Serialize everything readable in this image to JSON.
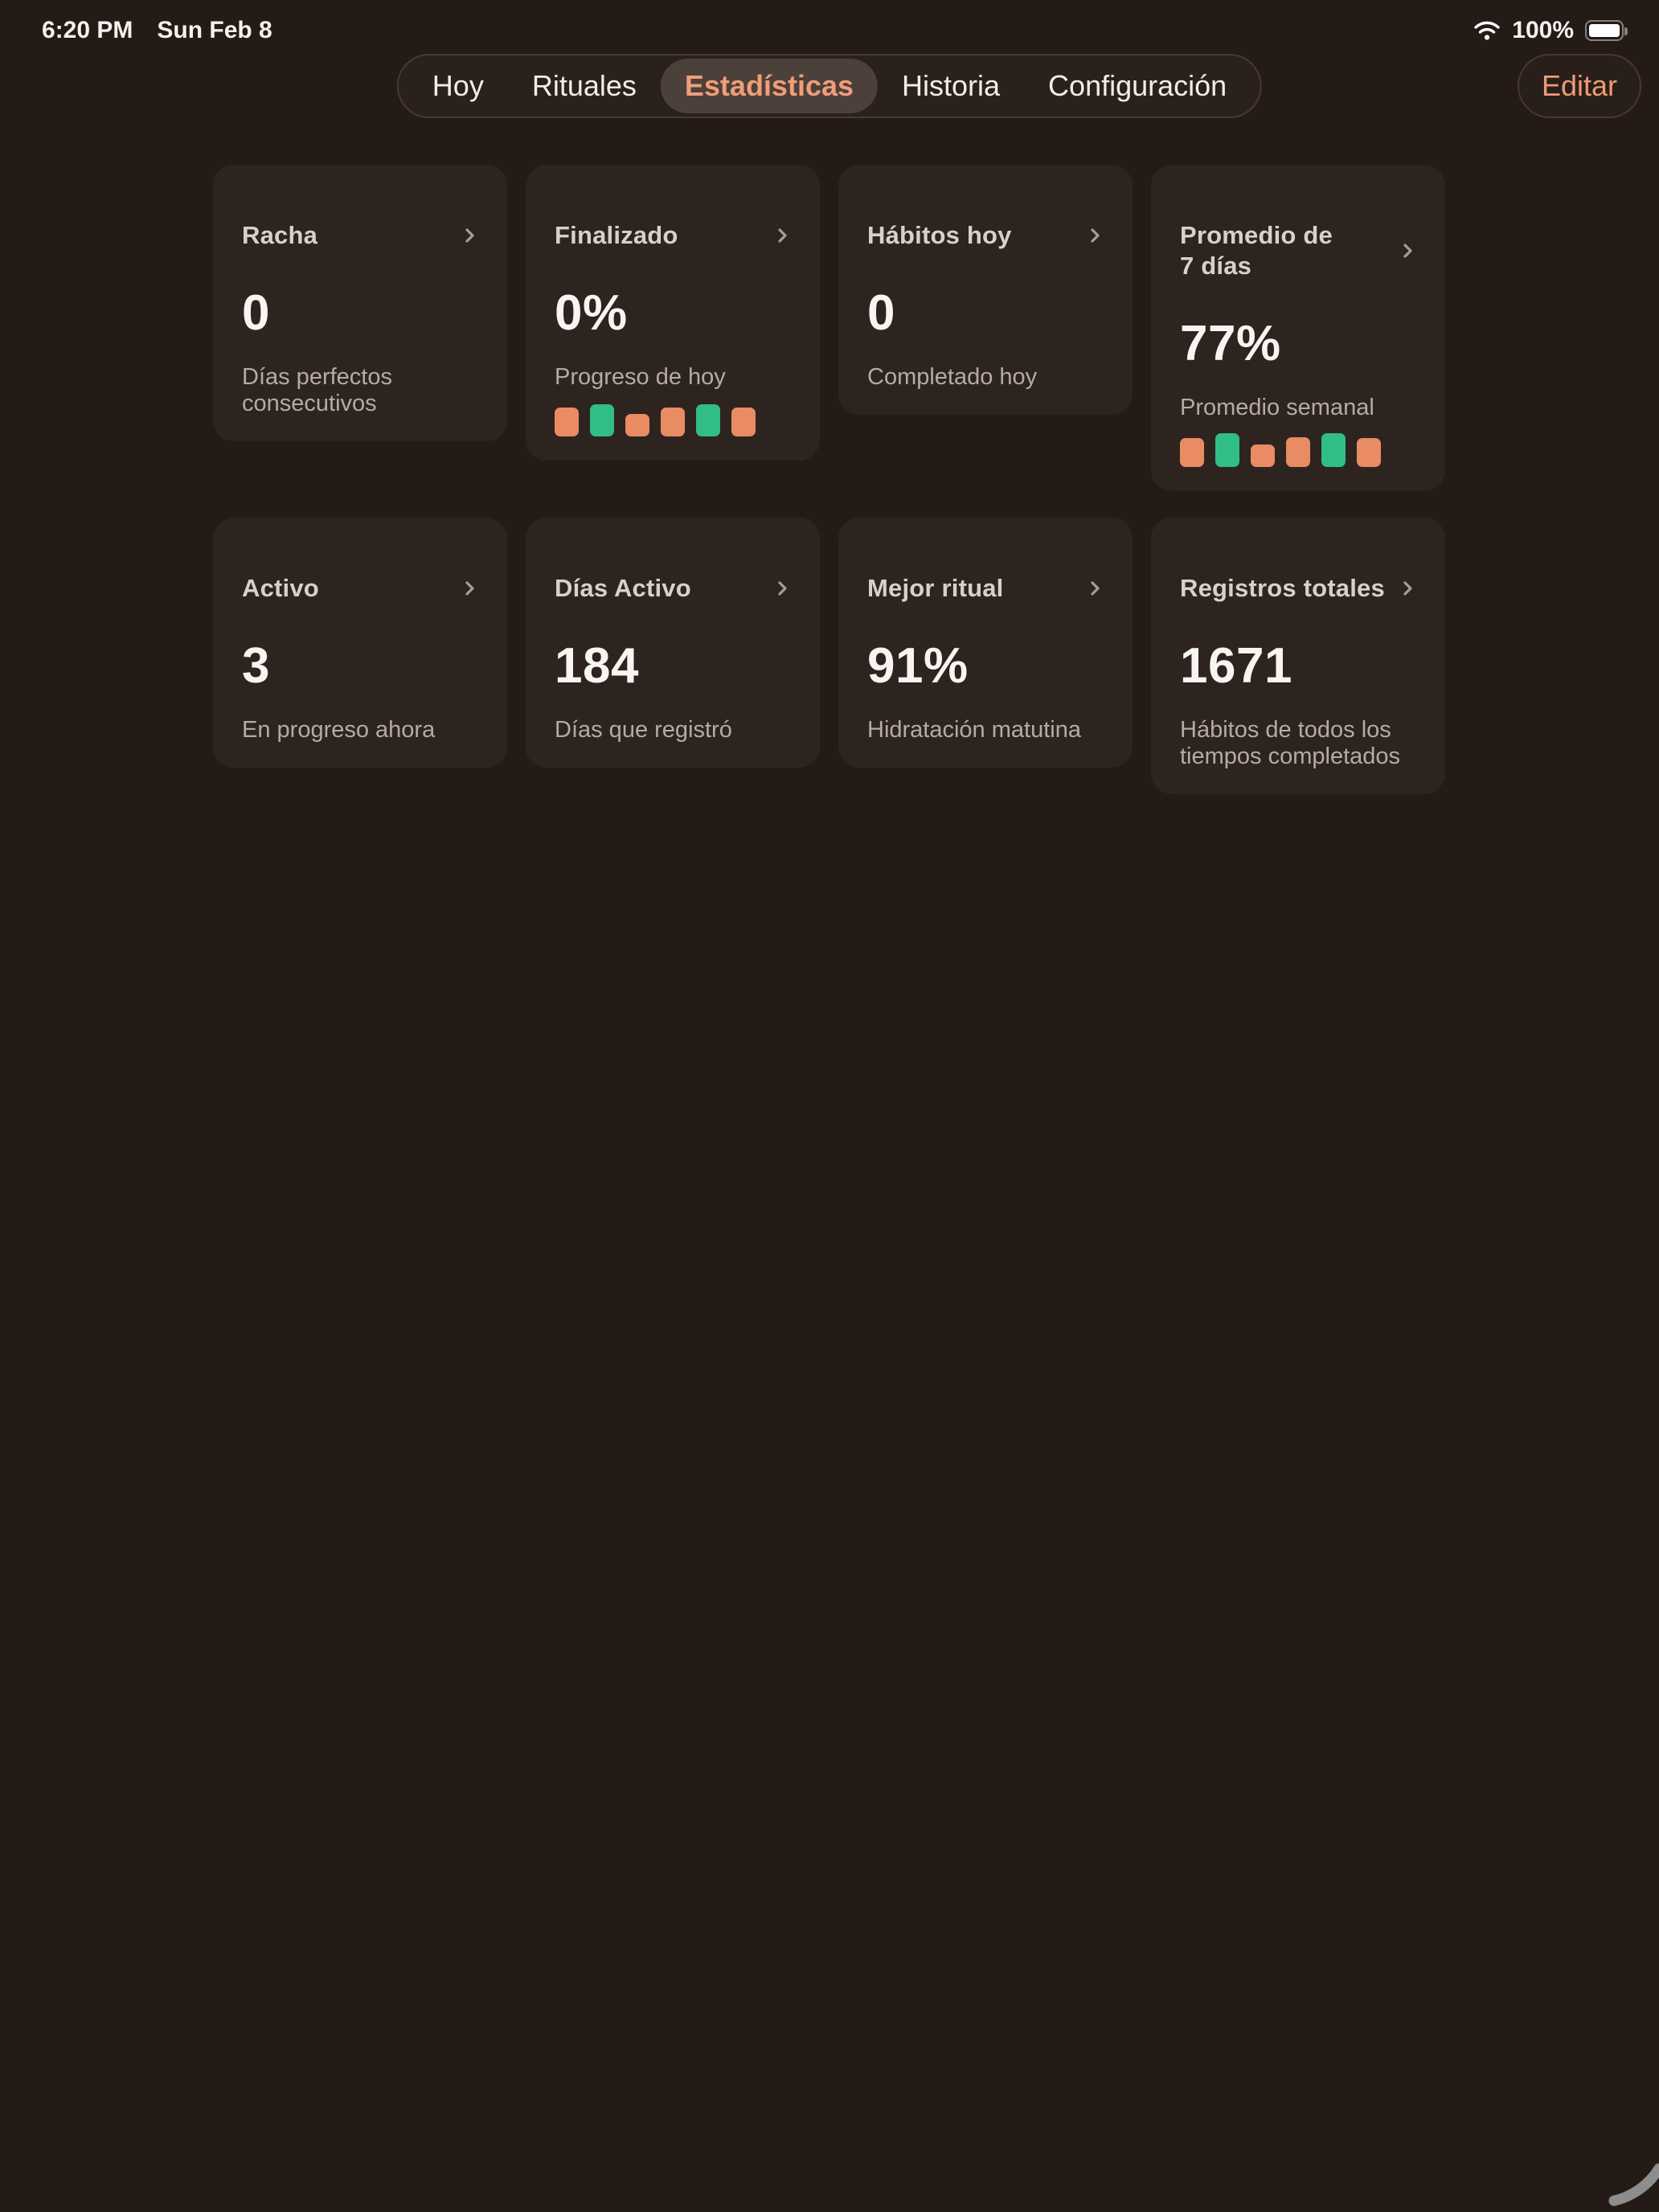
{
  "status_bar": {
    "time": "6:20 PM",
    "date": "Sun Feb 8",
    "battery_percent": "100%"
  },
  "nav": {
    "tabs": [
      {
        "label": "Hoy",
        "selected": false
      },
      {
        "label": "Rituales",
        "selected": false
      },
      {
        "label": "Estadísticas",
        "selected": true
      },
      {
        "label": "Historia",
        "selected": false
      },
      {
        "label": "Configuración",
        "selected": false
      }
    ],
    "edit_label": "Editar"
  },
  "cards": [
    {
      "title": "Racha",
      "value": "0",
      "subtitle": "Días perfectos consecutivos",
      "bars": null
    },
    {
      "title": "Finalizado",
      "value": "0%",
      "subtitle": "Progreso de hoy",
      "bars": [
        {
          "height": 36,
          "color": "orange"
        },
        {
          "height": 40,
          "color": "green"
        },
        {
          "height": 28,
          "color": "orange"
        },
        {
          "height": 36,
          "color": "orange"
        },
        {
          "height": 40,
          "color": "green"
        },
        {
          "height": 36,
          "color": "orange"
        }
      ]
    },
    {
      "title": "Hábitos hoy",
      "value": "0",
      "subtitle": "Completado hoy",
      "bars": null
    },
    {
      "title": "Promedio de\n7 días",
      "value": "77%",
      "subtitle": "Promedio semanal",
      "bars": [
        {
          "height": 36,
          "color": "orange"
        },
        {
          "height": 42,
          "color": "green"
        },
        {
          "height": 28,
          "color": "orange"
        },
        {
          "height": 37,
          "color": "orange"
        },
        {
          "height": 42,
          "color": "green"
        },
        {
          "height": 36,
          "color": "orange"
        }
      ]
    },
    {
      "title": "Activo",
      "value": "3",
      "subtitle": "En progreso ahora",
      "bars": null
    },
    {
      "title": "Días Activo",
      "value": "184",
      "subtitle": "Días que registró",
      "bars": null
    },
    {
      "title": "Mejor ritual",
      "value": "91%",
      "subtitle": "Hidratación matutina",
      "bars": null
    },
    {
      "title": "Registros totales",
      "value": "1671",
      "subtitle": "Hábitos de todos los tiempos completados",
      "bars": null
    }
  ],
  "chart_data": [
    {
      "type": "bar",
      "card": "Finalizado",
      "label": "Progreso de hoy",
      "values": [
        36,
        40,
        28,
        36,
        40,
        36
      ],
      "colors": [
        "orange",
        "green",
        "orange",
        "orange",
        "green",
        "orange"
      ]
    },
    {
      "type": "bar",
      "card": "Promedio de 7 días",
      "label": "Promedio semanal",
      "values": [
        36,
        42,
        28,
        37,
        42,
        36
      ],
      "colors": [
        "orange",
        "green",
        "orange",
        "orange",
        "green",
        "orange"
      ]
    }
  ],
  "colors": {
    "orange": "#e98b63",
    "green": "#30be85",
    "accent": "#f09d78",
    "page_bg": "#241b17",
    "card_bg": "#2d2420"
  }
}
